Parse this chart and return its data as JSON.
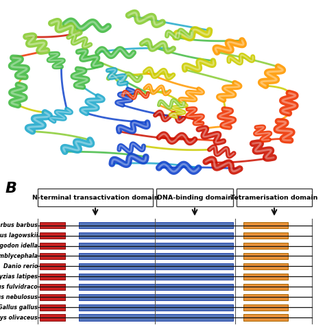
{
  "panel_b_label": "B",
  "domain_labels": [
    "N-terminal transactivation domain",
    "DNA-binding domain",
    "Tetramerisation domain"
  ],
  "species": [
    "Barbus barbus",
    "Phoxinus lagowskii",
    "Ctenopharyngodon idella",
    "Megalobrama amblycephala",
    "Danio rerio",
    "Oryzias latipes",
    "Tachysurus fulvidraco",
    "Ameiurus nebulosus",
    "Gallus gallus",
    "Paralichthys olivaceus"
  ],
  "red_color": "#CC2222",
  "blue_color": "#5577BB",
  "orange_color": "#E8923A",
  "line_color": "#111111",
  "bg_color": "#ffffff",
  "header_box_edge": "#333333",
  "arrow_color": "#111111",
  "species_fontsize": 5.8,
  "domain_fontsize": 6.8,
  "panel_b_fontsize": 16
}
